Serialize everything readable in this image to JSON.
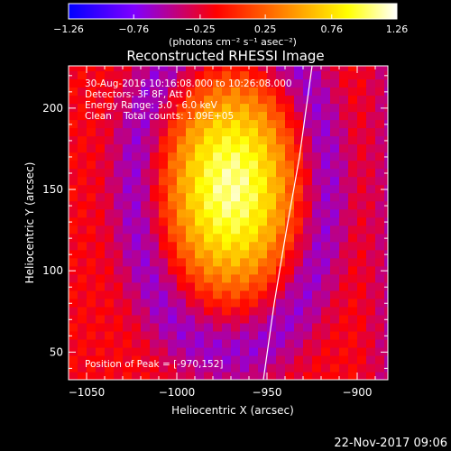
{
  "chart_data": {
    "type": "heatmap",
    "title": "Reconstructed RHESSI Image",
    "xlabel": "Heliocentric X (arcsec)",
    "ylabel": "Heliocentric Y (arcsec)",
    "xlim": [
      -1060,
      -883
    ],
    "ylim": [
      33,
      226
    ],
    "xticks": [
      -1050,
      -1000,
      -950,
      -900
    ],
    "xtick_labels": [
      "−1050",
      "−1000",
      "−950",
      "−900"
    ],
    "yticks": [
      50,
      100,
      150,
      200
    ],
    "ytick_labels": [
      "50",
      "100",
      "150",
      "200"
    ],
    "colorbar": {
      "label": "(photons cm⁻² s⁻¹ asec⁻²)",
      "range": [
        -1.26,
        1.26
      ],
      "ticks": [
        -1.26,
        -0.76,
        -0.25,
        0.25,
        0.76,
        1.26
      ],
      "tick_labels": [
        "−1.26",
        "−0.76",
        "−0.25",
        "0.25",
        "0.76",
        "1.26"
      ],
      "colors": [
        "#0000ff",
        "#7f00ff",
        "#ff0000",
        "#ff8000",
        "#ffff00",
        "#ffffff"
      ]
    },
    "source": {
      "peak_x": -970,
      "peak_y": 152,
      "peak_value": 1.26,
      "sigma_x": 24,
      "sigma_y": 45
    },
    "limb_curve": [
      [
        -952,
        33
      ],
      [
        -946,
        80
      ],
      [
        -940,
        120
      ],
      [
        -932,
        170
      ],
      [
        -925,
        226
      ]
    ]
  },
  "annotations": {
    "time_range": "30-Aug-2016 10:16:08.000 to 10:26:08.000",
    "detectors": "Detectors: 3F 8F, Att 0",
    "energy": "Energy Range: 3.0 - 6.0 keV",
    "clean": "Clean    Total counts: 1.09E+05",
    "peak_position": "Position of Peak = [-970,152]"
  },
  "footer": {
    "date": "22-Nov-2017 09:06"
  }
}
